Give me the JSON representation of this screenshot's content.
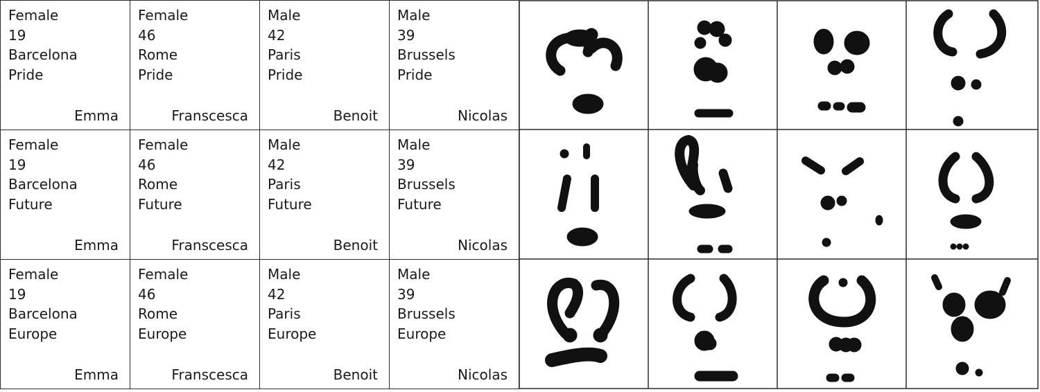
{
  "profiles": [
    {
      "gender": "Female",
      "age": "19",
      "city": "Barcelona",
      "name": "Emma"
    },
    {
      "gender": "Female",
      "age": "46",
      "city": "Rome",
      "name": "Franscesca"
    },
    {
      "gender": "Male",
      "age": "42",
      "city": "Paris",
      "name": "Benoit"
    },
    {
      "gender": "Male",
      "age": "39",
      "city": "Brussels",
      "name": "Nicolas"
    }
  ],
  "themes": [
    "Pride",
    "Future",
    "Europe"
  ],
  "drawings": {
    "rows": 3,
    "cols": 4,
    "ink_color": "#111111",
    "grid_color": "#2a2a2a"
  }
}
